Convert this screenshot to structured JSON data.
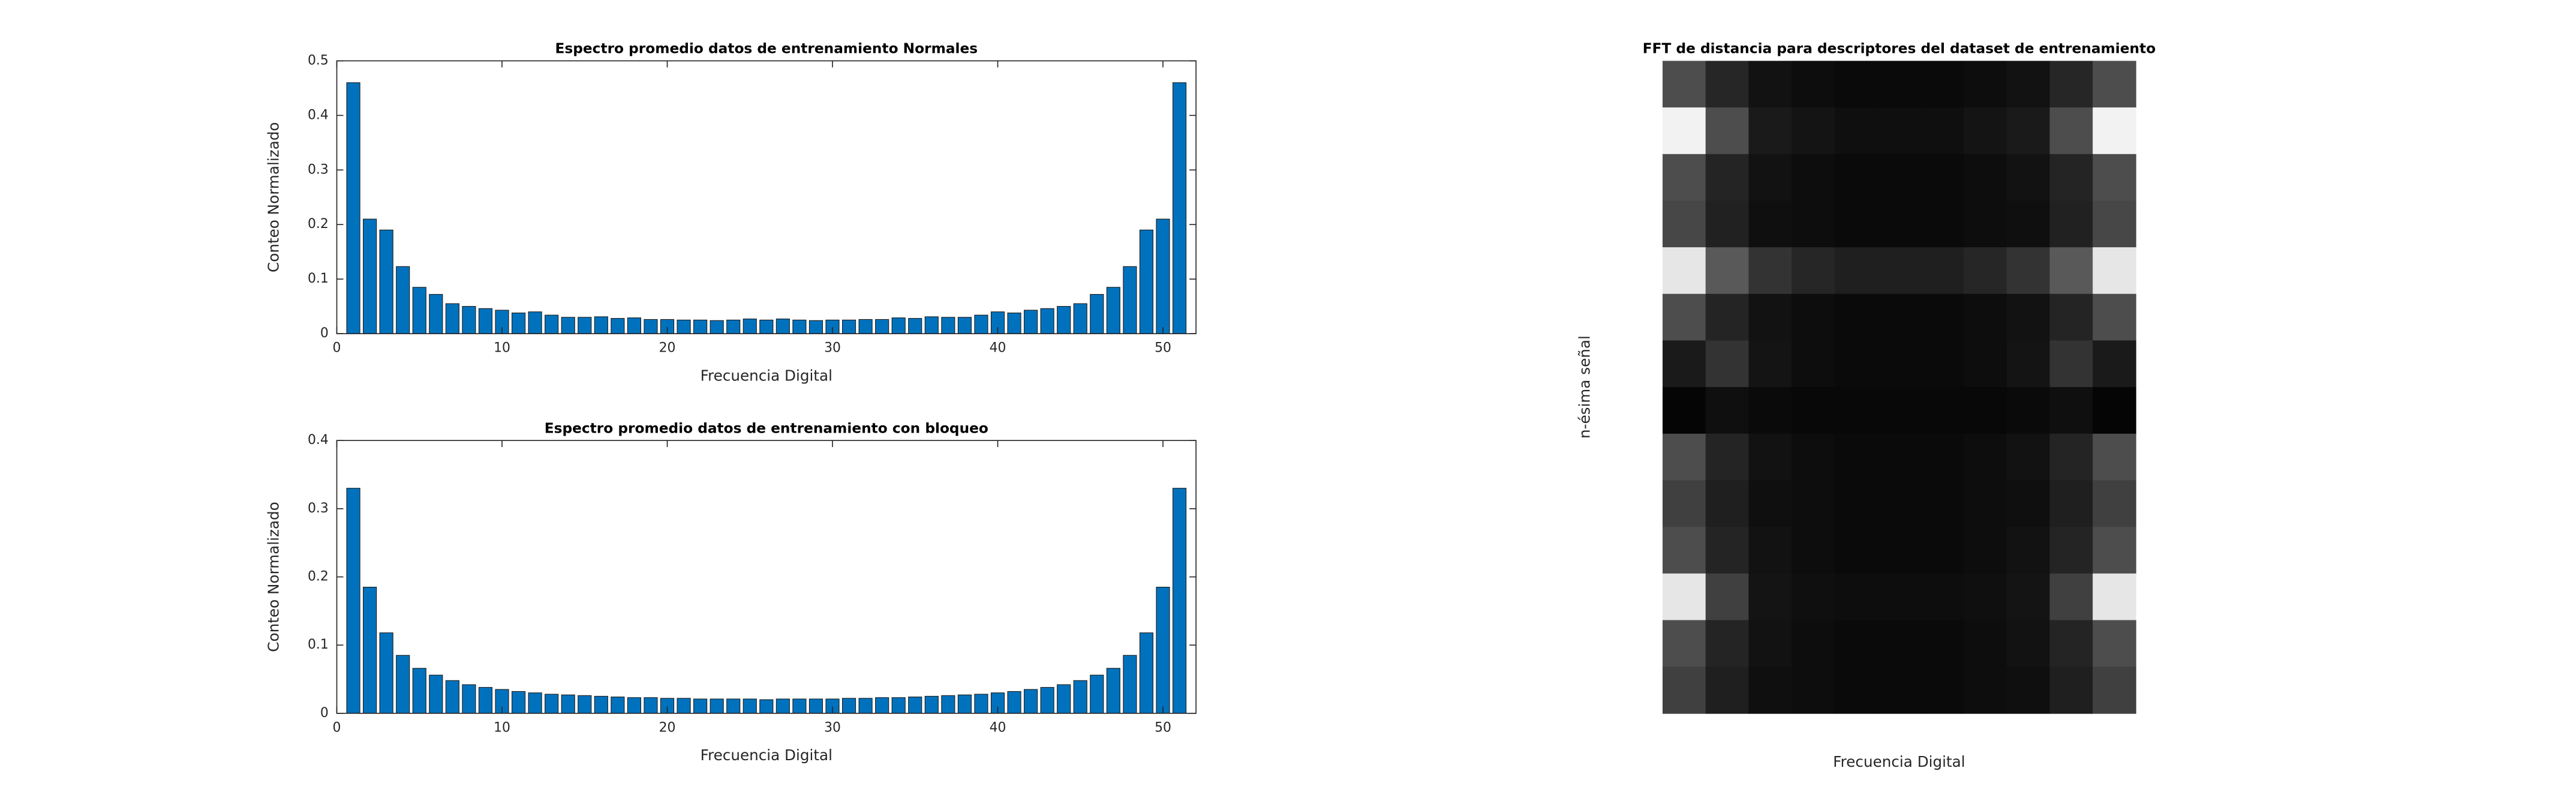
{
  "chart_data": [
    {
      "type": "bar",
      "title": "Espectro promedio datos de entrenamiento Normales",
      "xlabel": "Frecuencia Digital",
      "ylabel": "Conteo Normalizado",
      "color": "#0072bd",
      "x": [
        1,
        2,
        3,
        4,
        5,
        6,
        7,
        8,
        9,
        10,
        11,
        12,
        13,
        14,
        15,
        16,
        17,
        18,
        19,
        20,
        21,
        22,
        23,
        24,
        25,
        26,
        27,
        28,
        29,
        30,
        31,
        32,
        33,
        34,
        35,
        36,
        37,
        38,
        39,
        40,
        41,
        42,
        43,
        44,
        45,
        46,
        47,
        48,
        49,
        50,
        51
      ],
      "values": [
        0.46,
        0.21,
        0.19,
        0.123,
        0.085,
        0.072,
        0.055,
        0.05,
        0.046,
        0.043,
        0.038,
        0.04,
        0.034,
        0.03,
        0.03,
        0.031,
        0.028,
        0.029,
        0.026,
        0.026,
        0.025,
        0.025,
        0.024,
        0.025,
        0.027,
        0.025,
        0.027,
        0.025,
        0.024,
        0.025,
        0.025,
        0.026,
        0.026,
        0.029,
        0.028,
        0.031,
        0.03,
        0.03,
        0.034,
        0.04,
        0.038,
        0.043,
        0.046,
        0.05,
        0.055,
        0.072,
        0.085,
        0.123,
        0.19,
        0.21,
        0.46
      ],
      "xlim": [
        0,
        52
      ],
      "xticks": [
        0,
        10,
        20,
        30,
        40,
        50
      ],
      "ylim": [
        0,
        0.5
      ],
      "yticks": [
        0,
        0.1,
        0.2,
        0.3,
        0.4,
        0.5
      ]
    },
    {
      "type": "bar",
      "title": "Espectro promedio datos de entrenamiento con bloqueo",
      "xlabel": "Frecuencia Digital",
      "ylabel": "Conteo Normalizado",
      "color": "#0072bd",
      "x": [
        1,
        2,
        3,
        4,
        5,
        6,
        7,
        8,
        9,
        10,
        11,
        12,
        13,
        14,
        15,
        16,
        17,
        18,
        19,
        20,
        21,
        22,
        23,
        24,
        25,
        26,
        27,
        28,
        29,
        30,
        31,
        32,
        33,
        34,
        35,
        36,
        37,
        38,
        39,
        40,
        41,
        42,
        43,
        44,
        45,
        46,
        47,
        48,
        49,
        50,
        51
      ],
      "values": [
        0.33,
        0.185,
        0.118,
        0.085,
        0.066,
        0.056,
        0.048,
        0.042,
        0.038,
        0.035,
        0.032,
        0.03,
        0.028,
        0.027,
        0.026,
        0.025,
        0.024,
        0.023,
        0.023,
        0.022,
        0.022,
        0.021,
        0.021,
        0.021,
        0.021,
        0.02,
        0.021,
        0.021,
        0.021,
        0.021,
        0.022,
        0.022,
        0.023,
        0.023,
        0.024,
        0.025,
        0.026,
        0.027,
        0.028,
        0.03,
        0.032,
        0.035,
        0.038,
        0.042,
        0.048,
        0.056,
        0.066,
        0.085,
        0.118,
        0.185,
        0.33
      ],
      "xlim": [
        0,
        52
      ],
      "xticks": [
        0,
        10,
        20,
        30,
        40,
        50
      ],
      "ylim": [
        0,
        0.4
      ],
      "yticks": [
        0,
        0.1,
        0.2,
        0.3,
        0.4
      ]
    },
    {
      "type": "heatmap",
      "title": "FFT de distancia para descriptores del dataset de entrenamiento",
      "xlabel": "Frecuencia Digital",
      "ylabel": "n-ésima señal",
      "z": [
        [
          0.3,
          0.15,
          0.07,
          0.05,
          0.04,
          0.04,
          0.04,
          0.05,
          0.07,
          0.15,
          0.3
        ],
        [
          0.95,
          0.3,
          0.1,
          0.08,
          0.06,
          0.06,
          0.06,
          0.08,
          0.1,
          0.3,
          0.95
        ],
        [
          0.3,
          0.14,
          0.07,
          0.05,
          0.04,
          0.04,
          0.04,
          0.05,
          0.07,
          0.14,
          0.3
        ],
        [
          0.28,
          0.13,
          0.06,
          0.05,
          0.04,
          0.04,
          0.04,
          0.05,
          0.06,
          0.13,
          0.28
        ],
        [
          0.9,
          0.35,
          0.2,
          0.15,
          0.12,
          0.12,
          0.12,
          0.15,
          0.2,
          0.35,
          0.9
        ],
        [
          0.3,
          0.14,
          0.07,
          0.05,
          0.04,
          0.04,
          0.04,
          0.05,
          0.07,
          0.14,
          0.3
        ],
        [
          0.1,
          0.2,
          0.08,
          0.05,
          0.04,
          0.04,
          0.04,
          0.05,
          0.08,
          0.2,
          0.1
        ],
        [
          0.02,
          0.06,
          0.04,
          0.03,
          0.03,
          0.03,
          0.03,
          0.03,
          0.04,
          0.06,
          0.02
        ],
        [
          0.3,
          0.14,
          0.07,
          0.05,
          0.04,
          0.04,
          0.04,
          0.05,
          0.07,
          0.14,
          0.3
        ],
        [
          0.25,
          0.12,
          0.06,
          0.05,
          0.04,
          0.04,
          0.04,
          0.05,
          0.06,
          0.12,
          0.25
        ],
        [
          0.3,
          0.14,
          0.07,
          0.05,
          0.04,
          0.04,
          0.04,
          0.05,
          0.07,
          0.14,
          0.3
        ],
        [
          0.9,
          0.25,
          0.08,
          0.06,
          0.05,
          0.05,
          0.05,
          0.06,
          0.08,
          0.25,
          0.9
        ],
        [
          0.3,
          0.14,
          0.07,
          0.05,
          0.04,
          0.04,
          0.04,
          0.05,
          0.07,
          0.14,
          0.3
        ],
        [
          0.25,
          0.12,
          0.06,
          0.05,
          0.04,
          0.04,
          0.04,
          0.05,
          0.06,
          0.12,
          0.25
        ]
      ]
    }
  ]
}
